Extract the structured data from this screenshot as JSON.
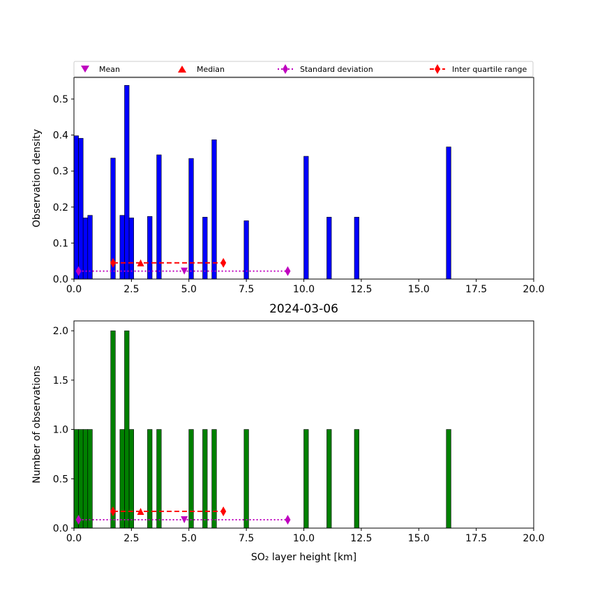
{
  "legend": {
    "items": [
      {
        "label": "Mean",
        "marker": "triangle-down",
        "color": "#bf00bf"
      },
      {
        "label": "Median",
        "marker": "triangle-up",
        "color": "#ff0000"
      },
      {
        "label": "Standard deviation",
        "marker": "thin-diamond",
        "color": "#bf00bf",
        "line": "dotted"
      },
      {
        "label": "Inter quartile range",
        "marker": "thin-diamond",
        "color": "#ff0000",
        "line": "dashed"
      }
    ]
  },
  "chart_data": [
    {
      "type": "bar",
      "title": "",
      "xlabel": "",
      "ylabel": "Observation density",
      "xlim": [
        0,
        20
      ],
      "ylim": [
        0,
        0.56
      ],
      "xticks": [
        0,
        2.5,
        5,
        7.5,
        10,
        12.5,
        15,
        17.5,
        20
      ],
      "xtick_labels": [
        "0.0",
        "2.5",
        "5.0",
        "7.5",
        "10.0",
        "12.5",
        "15.0",
        "17.5",
        "20.0"
      ],
      "yticks": [
        0,
        0.1,
        0.2,
        0.3,
        0.4,
        0.5
      ],
      "ytick_labels": [
        "0.0",
        "0.1",
        "0.2",
        "0.3",
        "0.4",
        "0.5"
      ],
      "bar_color": "#0000ff",
      "bin_width": 0.2,
      "bins": [
        {
          "x": 0.1,
          "value": 0.398
        },
        {
          "x": 0.3,
          "value": 0.391
        },
        {
          "x": 0.5,
          "value": 0.17
        },
        {
          "x": 0.7,
          "value": 0.177
        },
        {
          "x": 1.7,
          "value": 0.336
        },
        {
          "x": 2.1,
          "value": 0.177
        },
        {
          "x": 2.3,
          "value": 0.538
        },
        {
          "x": 2.5,
          "value": 0.17
        },
        {
          "x": 3.3,
          "value": 0.174
        },
        {
          "x": 3.7,
          "value": 0.345
        },
        {
          "x": 5.1,
          "value": 0.335
        },
        {
          "x": 5.7,
          "value": 0.172
        },
        {
          "x": 6.1,
          "value": 0.387
        },
        {
          "x": 7.5,
          "value": 0.162
        },
        {
          "x": 10.1,
          "value": 0.341
        },
        {
          "x": 11.1,
          "value": 0.172
        },
        {
          "x": 12.3,
          "value": 0.172
        },
        {
          "x": 16.3,
          "value": 0.367
        }
      ],
      "stats": {
        "mean": {
          "x": 4.8,
          "y": 0.022
        },
        "median": {
          "x": 2.9,
          "y": 0.045
        },
        "std_dev": {
          "x": [
            0.2,
            9.3
          ],
          "y": 0.022
        },
        "iqr": {
          "x": [
            1.7,
            6.5
          ],
          "y": 0.045
        }
      }
    },
    {
      "type": "bar",
      "title": "2024-03-06",
      "xlabel": "SO₂ layer height [km]",
      "ylabel": "Number of observations",
      "xlim": [
        0,
        20
      ],
      "ylim": [
        0,
        2.1
      ],
      "xticks": [
        0,
        2.5,
        5,
        7.5,
        10,
        12.5,
        15,
        17.5,
        20
      ],
      "xtick_labels": [
        "0.0",
        "2.5",
        "5.0",
        "7.5",
        "10.0",
        "12.5",
        "15.0",
        "17.5",
        "20.0"
      ],
      "yticks": [
        0,
        0.5,
        1,
        1.5,
        2
      ],
      "ytick_labels": [
        "0.0",
        "0.5",
        "1.0",
        "1.5",
        "2.0"
      ],
      "bar_color": "#008000",
      "bin_width": 0.2,
      "bins": [
        {
          "x": 0.1,
          "value": 1
        },
        {
          "x": 0.3,
          "value": 1
        },
        {
          "x": 0.5,
          "value": 1
        },
        {
          "x": 0.7,
          "value": 1
        },
        {
          "x": 1.7,
          "value": 2
        },
        {
          "x": 2.1,
          "value": 1
        },
        {
          "x": 2.3,
          "value": 2
        },
        {
          "x": 2.5,
          "value": 1
        },
        {
          "x": 3.3,
          "value": 1
        },
        {
          "x": 3.7,
          "value": 1
        },
        {
          "x": 5.1,
          "value": 1
        },
        {
          "x": 5.7,
          "value": 1
        },
        {
          "x": 6.1,
          "value": 1
        },
        {
          "x": 7.5,
          "value": 1
        },
        {
          "x": 10.1,
          "value": 1
        },
        {
          "x": 11.1,
          "value": 1
        },
        {
          "x": 12.3,
          "value": 1
        },
        {
          "x": 16.3,
          "value": 1
        }
      ],
      "stats": {
        "mean": {
          "x": 4.8,
          "y": 0.085
        },
        "median": {
          "x": 2.9,
          "y": 0.17
        },
        "std_dev": {
          "x": [
            0.2,
            9.3
          ],
          "y": 0.085
        },
        "iqr": {
          "x": [
            1.7,
            6.5
          ],
          "y": 0.17
        }
      }
    }
  ]
}
